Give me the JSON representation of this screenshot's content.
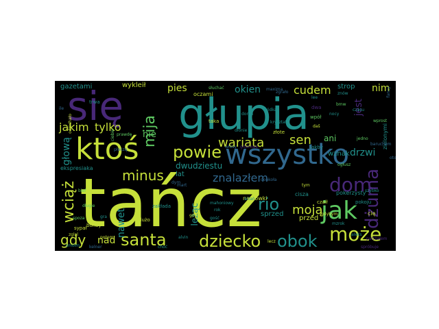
{
  "wordcloud": {
    "palette": {
      "lime": "#c6e03a",
      "green": "#5ec962",
      "teal": "#21918c",
      "blue": "#3b528b",
      "purple": "#482878",
      "darkblue": "#31688e",
      "darkpurple": "#440154",
      "yellowgreen": "#a5db36"
    },
    "words": [
      {
        "text": "tańcz",
        "color": "lime"
      },
      {
        "text": "głupia",
        "color": "teal"
      },
      {
        "text": "się",
        "color": "purple"
      },
      {
        "text": "wszystko",
        "color": "darkblue"
      },
      {
        "text": "ktoś",
        "color": "lime"
      },
      {
        "text": "jak",
        "color": "green"
      },
      {
        "text": "dom",
        "color": "purple"
      },
      {
        "text": "dżuma",
        "color": "purple"
      },
      {
        "text": "może",
        "color": "lime"
      },
      {
        "text": "dziecko",
        "color": "lime"
      },
      {
        "text": "santa",
        "color": "lime"
      },
      {
        "text": "powie",
        "color": "lime"
      },
      {
        "text": "wariata",
        "color": "lime"
      },
      {
        "text": "obok",
        "color": "teal"
      },
      {
        "text": "minus",
        "color": "lime"
      },
      {
        "text": "rio",
        "color": "teal"
      },
      {
        "text": "mija",
        "color": "green"
      },
      {
        "text": "sen",
        "color": "lime"
      },
      {
        "text": "wciąż",
        "color": "lime"
      },
      {
        "text": "gdy",
        "color": "lime"
      },
      {
        "text": "jakim",
        "color": "lime"
      },
      {
        "text": "tylko",
        "color": "lime"
      },
      {
        "text": "pies",
        "color": "lime"
      },
      {
        "text": "okien",
        "color": "teal"
      },
      {
        "text": "cudem",
        "color": "lime"
      },
      {
        "text": "nim",
        "color": "lime"
      },
      {
        "text": "jest",
        "color": "purple"
      },
      {
        "text": "drzwi",
        "color": "teal"
      },
      {
        "text": "ani",
        "color": "green"
      },
      {
        "text": "głową",
        "color": "teal"
      },
      {
        "text": "nie",
        "color": "green"
      },
      {
        "text": "znalazłem",
        "color": "darkblue"
      },
      {
        "text": "moją",
        "color": "lime"
      },
      {
        "text": "nad",
        "color": "lime"
      },
      {
        "text": "nawet",
        "color": "teal"
      },
      {
        "text": "leżąc",
        "color": "teal"
      },
      {
        "text": "wznak",
        "color": "teal"
      },
      {
        "text": "strop",
        "color": "teal"
      },
      {
        "text": "wykleił",
        "color": "lime"
      },
      {
        "text": "gazetami",
        "color": "teal"
      },
      {
        "text": "dwudziestu",
        "color": "teal"
      },
      {
        "text": "lat",
        "color": "teal"
      },
      {
        "text": "przed",
        "color": "lime"
      },
      {
        "text": "sprzed",
        "color": "teal"
      },
      {
        "text": "nagłówki",
        "color": "lime"
      },
      {
        "text": "ekspresiaka",
        "color": "teal"
      },
      {
        "text": "oczami",
        "color": "lime"
      },
      {
        "text": "pokerzysty",
        "color": "teal"
      },
      {
        "text": "maxima",
        "color": "darkblue"
      },
      {
        "text": "taka",
        "color": "lime"
      },
      {
        "text": "domu",
        "color": "teal"
      },
      {
        "text": "włosy",
        "color": "darkblue"
      },
      {
        "text": "gitarowe",
        "color": "purple"
      },
      {
        "text": "jakby",
        "color": "teal"
      },
      {
        "text": "dwa",
        "color": "purple"
      },
      {
        "text": "wpół",
        "color": "green"
      },
      {
        "text": "daš",
        "color": "lime"
      },
      {
        "text": "cię",
        "color": "lime"
      },
      {
        "text": "czaił",
        "color": "lime"
      },
      {
        "text": "mzrok",
        "color": "teal"
      },
      {
        "text": "cisza",
        "color": "teal"
      },
      {
        "text": "tym",
        "color": "lime"
      },
      {
        "text": "pokoju",
        "color": "teal"
      },
      {
        "text": "gdybym",
        "color": "lime"
      },
      {
        "text": "złote",
        "color": "lime"
      },
      {
        "text": "dużo",
        "color": "lime"
      },
      {
        "text": "zakłada",
        "color": "teal"
      },
      {
        "text": "boney",
        "color": "lime"
      },
      {
        "text": "sypał",
        "color": "lime"
      },
      {
        "text": "długie",
        "color": "green"
      },
      {
        "text": "alvin",
        "color": "teal"
      },
      {
        "text": "choć",
        "color": "teal"
      },
      {
        "text": "gość",
        "color": "teal"
      },
      {
        "text": "mahoniowy",
        "color": "teal"
      },
      {
        "text": "spoza",
        "color": "green"
      },
      {
        "text": "dym",
        "color": "darkblue"
      },
      {
        "text": "bief",
        "color": "green"
      },
      {
        "text": "zgląl",
        "color": "lime"
      },
      {
        "text": "ściań",
        "color": "teal"
      },
      {
        "text": "gdyni",
        "color": "lime"
      },
      {
        "text": "potem",
        "color": "lime"
      },
      {
        "text": "trwa",
        "color": "teal"
      },
      {
        "text": "słuchać",
        "color": "green"
      },
      {
        "text": "zgrało",
        "color": "darkblue"
      },
      {
        "text": "odjechało",
        "color": "lime"
      },
      {
        "text": "ile",
        "color": "darkblue"
      },
      {
        "text": "zielonymi",
        "color": "teal"
      },
      {
        "text": "kelner",
        "color": "darkblue"
      },
      {
        "text": "mart",
        "color": "darkblue"
      },
      {
        "text": "rok",
        "color": "teal"
      },
      {
        "text": "gra",
        "color": "teal"
      },
      {
        "text": "prawdę",
        "color": "green"
      },
      {
        "text": "smoim",
        "color": "teal"
      },
      {
        "text": "wprost",
        "color": "green"
      },
      {
        "text": "ciebie",
        "color": "green"
      },
      {
        "text": "znów",
        "color": "teal"
      },
      {
        "text": "baruchem",
        "color": "darkblue"
      },
      {
        "text": "patrzałem",
        "color": "purple"
      },
      {
        "text": "spróbuje",
        "color": "purple"
      },
      {
        "text": "bmw",
        "color": "green"
      },
      {
        "text": "lee",
        "color": "teal"
      },
      {
        "text": "nocy",
        "color": "teal"
      },
      {
        "text": "czasu",
        "color": "teal"
      },
      {
        "text": "kryształ",
        "color": "teal"
      },
      {
        "text": "lecz",
        "color": "lime"
      },
      {
        "text": "fancy",
        "color": "darkblue"
      },
      {
        "text": "wódka",
        "color": "teal"
      },
      {
        "text": "ogłusz",
        "color": "green"
      },
      {
        "text": "dłonie",
        "color": "teal"
      },
      {
        "text": "oto",
        "color": "darkblue"
      },
      {
        "text": "dookoła",
        "color": "darkblue"
      },
      {
        "text": "aleks",
        "color": "teal"
      },
      {
        "text": "płaczą",
        "color": "darkblue"
      },
      {
        "text": "jedno",
        "color": "green"
      },
      {
        "text": "szybko",
        "color": "teal"
      }
    ]
  }
}
